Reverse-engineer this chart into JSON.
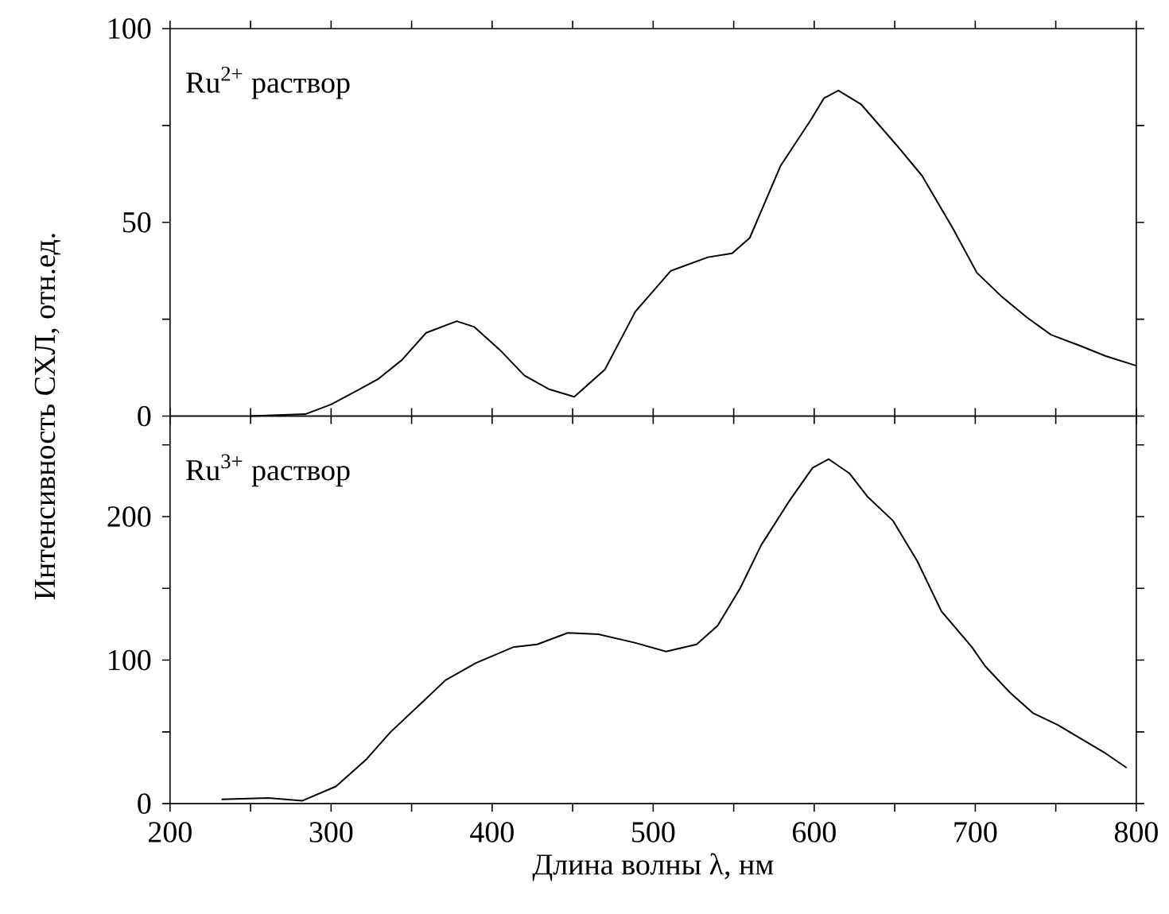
{
  "chart_data": [
    {
      "type": "line",
      "annotations": [
        "Ru$^{2+}$ раствор"
      ],
      "color": "#000000",
      "x": [
        250,
        284,
        300,
        318,
        329,
        344,
        359,
        378,
        389,
        405,
        420,
        435,
        451,
        470,
        489,
        511,
        534,
        549,
        560,
        579,
        598,
        606,
        615,
        629,
        651,
        667,
        686,
        701,
        716,
        732,
        747,
        766,
        781,
        800
      ],
      "values": [
        0,
        0.5,
        3,
        7,
        9.5,
        14.5,
        21.5,
        24.5,
        23,
        17,
        10.5,
        7,
        5,
        12,
        27,
        37.5,
        41,
        42,
        46,
        64.5,
        76.5,
        82,
        84,
        80.5,
        70,
        62,
        48.5,
        37,
        31,
        25.5,
        21,
        18,
        15.5,
        13
      ],
      "xlim": [
        200,
        800
      ],
      "ylim": [
        0,
        100
      ],
      "yticks": [
        0,
        {
          "value": 25,
          "label": null
        },
        50,
        {
          "value": 75,
          "label": null
        },
        100
      ],
      "xticks": [
        {
          "value": 200,
          "label": null
        },
        {
          "value": 250,
          "label": null
        },
        {
          "value": 300,
          "label": null
        },
        {
          "value": 350,
          "label": null
        },
        {
          "value": 400,
          "label": null
        },
        {
          "value": 450,
          "label": null
        },
        {
          "value": 500,
          "label": null
        },
        {
          "value": 550,
          "label": null
        },
        {
          "value": 600,
          "label": null
        },
        {
          "value": 650,
          "label": null
        },
        {
          "value": 700,
          "label": null
        },
        {
          "value": 750,
          "label": null
        },
        {
          "value": 800,
          "label": null
        }
      ],
      "tick_labels": "y"
    },
    {
      "type": "line",
      "xlabel": "Длина волны λ, нм",
      "ylabel": "Интенсивность СХЛ, отн.ед.",
      "annotations": [
        "Ru$^{3+}$ раствор"
      ],
      "color": "#000000",
      "x": [
        232,
        261,
        282,
        303,
        322,
        337,
        356,
        371,
        390,
        413,
        428,
        447,
        466,
        489,
        508,
        527,
        540,
        554,
        567,
        584,
        599,
        609,
        622,
        633,
        649,
        664,
        679,
        698,
        706,
        721,
        736,
        751,
        766,
        781,
        794
      ],
      "values": [
        3,
        4,
        2,
        12,
        31,
        50,
        70,
        86,
        98,
        109,
        111,
        119,
        118,
        112,
        106,
        111,
        124,
        150,
        180,
        210,
        234,
        240,
        230,
        214,
        197,
        169,
        134,
        109,
        96,
        78,
        63,
        55,
        45,
        35,
        25
      ],
      "xlim": [
        200,
        800
      ],
      "ylim": [
        0,
        270
      ],
      "yticks": [
        0,
        {
          "value": 50,
          "label": null
        },
        100,
        {
          "value": 150,
          "label": null
        },
        200,
        {
          "value": 250,
          "label": null
        }
      ],
      "xticks": [
        200,
        {
          "value": 250,
          "label": null
        },
        300,
        {
          "value": 350,
          "label": null
        },
        400,
        {
          "value": 450,
          "label": null
        },
        500,
        {
          "value": 550,
          "label": null
        },
        600,
        {
          "value": 650,
          "label": null
        },
        700,
        {
          "value": 750,
          "label": null
        },
        800
      ]
    }
  ]
}
